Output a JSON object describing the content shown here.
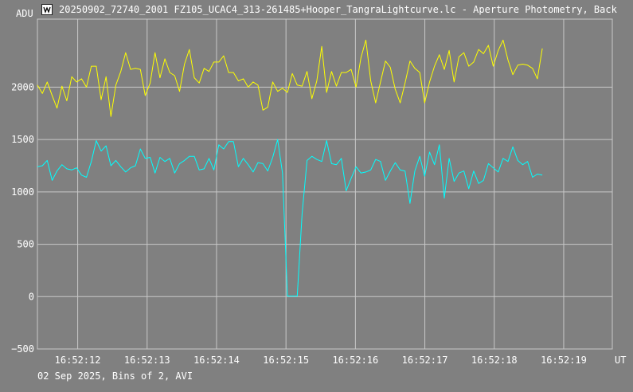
{
  "window": {
    "title": "20250902_72740_2001 FZ105_UCAC4_313-261485+Hooper_TangraLightcurve.lc - Aperture Photometry, Back",
    "icon": "lightcurve-app-icon"
  },
  "footer": {
    "text": "02 Sep 2025, Bins of 2, AVI"
  },
  "chart_data": {
    "type": "line",
    "title": "",
    "xlabel": "UT",
    "ylabel": "ADU",
    "ylim": [
      -500,
      2650
    ],
    "xlim": [
      -0.58,
      7.7
    ],
    "grid": true,
    "legend": "none",
    "y_ticks": [
      -500,
      0,
      500,
      1000,
      1500,
      2000
    ],
    "x_ticks": [
      {
        "pos": 0,
        "label": "16:52:12"
      },
      {
        "pos": 1,
        "label": "16:52:13"
      },
      {
        "pos": 2,
        "label": "16:52:14"
      },
      {
        "pos": 3,
        "label": "16:52:15"
      },
      {
        "pos": 4,
        "label": "16:52:16"
      },
      {
        "pos": 5,
        "label": "16:52:17"
      },
      {
        "pos": 6,
        "label": "16:52:18"
      },
      {
        "pos": 7,
        "label": "16:52:19"
      }
    ],
    "x_start": -0.58,
    "x_step": 0.0706,
    "series": [
      {
        "color": "#ffff00",
        "values": [
          2020,
          1940,
          2050,
          1920,
          1800,
          2010,
          1870,
          2100,
          2050,
          2080,
          2000,
          2200,
          2200,
          1880,
          2100,
          1720,
          2020,
          2150,
          2330,
          2170,
          2180,
          2170,
          1920,
          2040,
          2330,
          2090,
          2270,
          2140,
          2110,
          1960,
          2220,
          2360,
          2090,
          2040,
          2180,
          2150,
          2240,
          2240,
          2300,
          2140,
          2140,
          2060,
          2080,
          2000,
          2050,
          2020,
          1780,
          1810,
          2050,
          1960,
          1990,
          1950,
          2130,
          2020,
          2010,
          2150,
          1890,
          2060,
          2390,
          1950,
          2150,
          2010,
          2140,
          2140,
          2170,
          2000,
          2280,
          2450,
          2060,
          1850,
          2050,
          2250,
          2190,
          1980,
          1850,
          2040,
          2250,
          2180,
          2140,
          1850,
          2050,
          2200,
          2310,
          2170,
          2350,
          2050,
          2290,
          2330,
          2200,
          2240,
          2360,
          2320,
          2400,
          2200,
          2350,
          2450,
          2260,
          2120,
          2210,
          2220,
          2210,
          2180,
          2080,
          2370
        ]
      },
      {
        "color": "#00ffff",
        "values": [
          1240,
          1250,
          1300,
          1110,
          1200,
          1260,
          1220,
          1210,
          1230,
          1160,
          1140,
          1290,
          1490,
          1390,
          1440,
          1250,
          1300,
          1240,
          1190,
          1230,
          1250,
          1410,
          1320,
          1330,
          1180,
          1330,
          1290,
          1320,
          1180,
          1270,
          1300,
          1340,
          1340,
          1210,
          1220,
          1320,
          1210,
          1450,
          1410,
          1480,
          1480,
          1240,
          1320,
          1260,
          1190,
          1280,
          1270,
          1200,
          1330,
          1500,
          1180,
          5,
          5,
          5,
          790,
          1300,
          1340,
          1310,
          1290,
          1490,
          1270,
          1260,
          1320,
          1010,
          1130,
          1240,
          1180,
          1190,
          1210,
          1310,
          1290,
          1110,
          1200,
          1280,
          1210,
          1200,
          890,
          1200,
          1340,
          1150,
          1380,
          1260,
          1450,
          940,
          1320,
          1100,
          1180,
          1200,
          1030,
          1200,
          1080,
          1110,
          1270,
          1230,
          1190,
          1320,
          1290,
          1430,
          1300,
          1260,
          1290,
          1140,
          1170,
          1160
        ]
      }
    ]
  }
}
